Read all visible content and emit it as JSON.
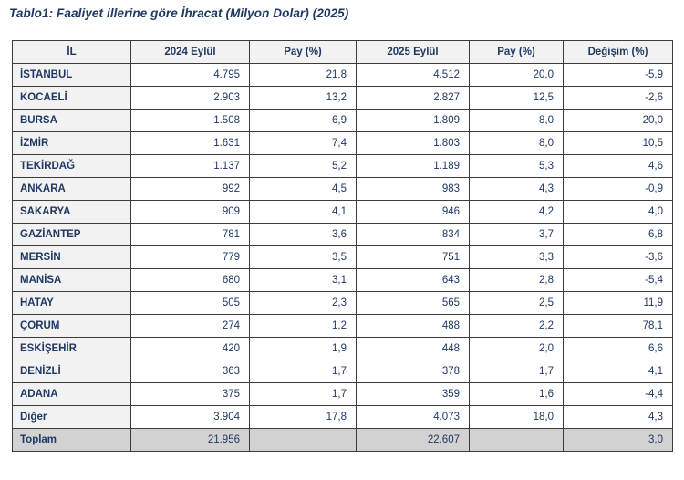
{
  "title": "Tablo1: Faaliyet illerine göre İhracat (Milyon Dolar) (2025)",
  "colors": {
    "text_navy": "#1f3864",
    "header_bg": "#f2f2f2",
    "label_bg": "#f2f2f2",
    "total_bg": "#d2d2d2",
    "border": "#3c3c3c",
    "page_bg": "#ffffff"
  },
  "table": {
    "headers": [
      "İL",
      "2024 Eylül",
      "Pay  (%)",
      "2025 Eylül",
      "Pay  (%)",
      "Değişim (%)"
    ],
    "rows": [
      [
        "İSTANBUL",
        "4.795",
        "21,8",
        "4.512",
        "20,0",
        "-5,9"
      ],
      [
        "KOCAELİ",
        "2.903",
        "13,2",
        "2.827",
        "12,5",
        "-2,6"
      ],
      [
        "BURSA",
        "1.508",
        "6,9",
        "1.809",
        "8,0",
        "20,0"
      ],
      [
        "İZMİR",
        "1.631",
        "7,4",
        "1.803",
        "8,0",
        "10,5"
      ],
      [
        "TEKİRDAĞ",
        "1.137",
        "5,2",
        "1.189",
        "5,3",
        "4,6"
      ],
      [
        "ANKARA",
        "992",
        "4,5",
        "983",
        "4,3",
        "-0,9"
      ],
      [
        "SAKARYA",
        "909",
        "4,1",
        "946",
        "4,2",
        "4,0"
      ],
      [
        "GAZİANTEP",
        "781",
        "3,6",
        "834",
        "3,7",
        "6,8"
      ],
      [
        "MERSİN",
        "779",
        "3,5",
        "751",
        "3,3",
        "-3,6"
      ],
      [
        "MANİSA",
        "680",
        "3,1",
        "643",
        "2,8",
        "-5,4"
      ],
      [
        "HATAY",
        "505",
        "2,3",
        "565",
        "2,5",
        "11,9"
      ],
      [
        "ÇORUM",
        "274",
        "1,2",
        "488",
        "2,2",
        "78,1"
      ],
      [
        "ESKİŞEHİR",
        "420",
        "1,9",
        "448",
        "2,0",
        "6,6"
      ],
      [
        "DENİZLİ",
        "363",
        "1,7",
        "378",
        "1,7",
        "4,1"
      ],
      [
        "ADANA",
        "375",
        "1,7",
        "359",
        "1,6",
        "-4,4"
      ],
      [
        "Diğer",
        "3.904",
        "17,8",
        "4.073",
        "18,0",
        "4,3"
      ]
    ],
    "total": [
      "Toplam",
      "21.956",
      "",
      "22.607",
      "",
      "3,0"
    ]
  }
}
